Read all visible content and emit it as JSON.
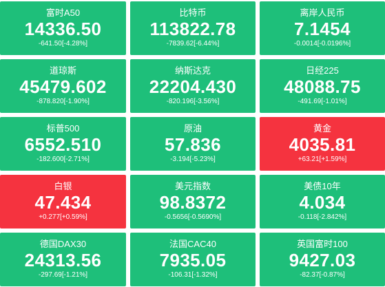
{
  "colors": {
    "down": "#1ebf7a",
    "up": "#f5333f",
    "text": "#ffffff",
    "background": "#ffffff"
  },
  "tiles": [
    {
      "name": "富时A50",
      "value": "14336.50",
      "change": "-641.50[-4.28%]",
      "trend": "down"
    },
    {
      "name": "比特币",
      "value": "113822.78",
      "change": "-7839.62[-6.44%]",
      "trend": "down"
    },
    {
      "name": "离岸人民币",
      "value": "7.1454",
      "change": "-0.0014[-0.0196%]",
      "trend": "down"
    },
    {
      "name": "道琼斯",
      "value": "45479.602",
      "change": "-878.820[-1.90%]",
      "trend": "down"
    },
    {
      "name": "纳斯达克",
      "value": "22204.430",
      "change": "-820.196[-3.56%]",
      "trend": "down"
    },
    {
      "name": "日经225",
      "value": "48088.75",
      "change": "-491.69[-1.01%]",
      "trend": "down"
    },
    {
      "name": "标普500",
      "value": "6552.510",
      "change": "-182.600[-2.71%]",
      "trend": "down"
    },
    {
      "name": "原油",
      "value": "57.836",
      "change": "-3.194[-5.23%]",
      "trend": "down"
    },
    {
      "name": "黄金",
      "value": "4035.81",
      "change": "+63.21[+1.59%]",
      "trend": "up"
    },
    {
      "name": "白银",
      "value": "47.434",
      "change": "+0.277[+0.59%]",
      "trend": "up"
    },
    {
      "name": "美元指数",
      "value": "98.8372",
      "change": "-0.5656[-0.5690%]",
      "trend": "down"
    },
    {
      "name": "美债10年",
      "value": "4.034",
      "change": "-0.118[-2.842%]",
      "trend": "down"
    },
    {
      "name": "德国DAX30",
      "value": "24313.56",
      "change": "-297.69[-1.21%]",
      "trend": "down"
    },
    {
      "name": "法国CAC40",
      "value": "7935.05",
      "change": "-106.31[-1.32%]",
      "trend": "down"
    },
    {
      "name": "英国富时100",
      "value": "9427.03",
      "change": "-82.37[-0.87%]",
      "trend": "down"
    }
  ]
}
